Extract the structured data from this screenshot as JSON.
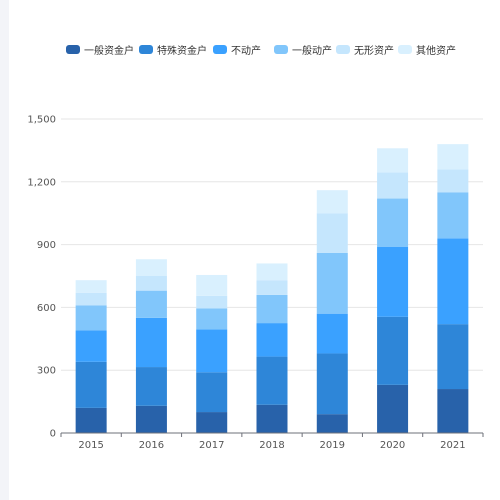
{
  "chart_data": {
    "type": "bar",
    "stacked": true,
    "categories": [
      "2015",
      "2016",
      "2017",
      "2018",
      "2019",
      "2020",
      "2021"
    ],
    "series": [
      {
        "name": "一般资金户",
        "color": "#2862aa",
        "values": [
          120,
          130,
          100,
          135,
          90,
          230,
          210
        ]
      },
      {
        "name": "特殊资金户",
        "color": "#2e86d8",
        "values": [
          220,
          185,
          190,
          230,
          290,
          325,
          310
        ]
      },
      {
        "name": "不动产",
        "color": "#3aa1ff",
        "values": [
          150,
          235,
          205,
          160,
          190,
          335,
          410
        ]
      },
      {
        "name": "一般动产",
        "color": "#81c6fb",
        "values": [
          120,
          130,
          100,
          135,
          290,
          230,
          220
        ]
      },
      {
        "name": "无形资产",
        "color": "#c5e6fd",
        "values": [
          60,
          70,
          60,
          70,
          190,
          125,
          110
        ]
      },
      {
        "name": "其他资产",
        "color": "#d9f0fe",
        "values": [
          60,
          80,
          100,
          80,
          110,
          115,
          120
        ]
      }
    ],
    "y_ticks": [
      "0",
      "300",
      "600",
      "900",
      "1,200",
      "1,500"
    ],
    "ylim": [
      0,
      1500
    ],
    "grid": true,
    "legend_position": "top-center"
  }
}
